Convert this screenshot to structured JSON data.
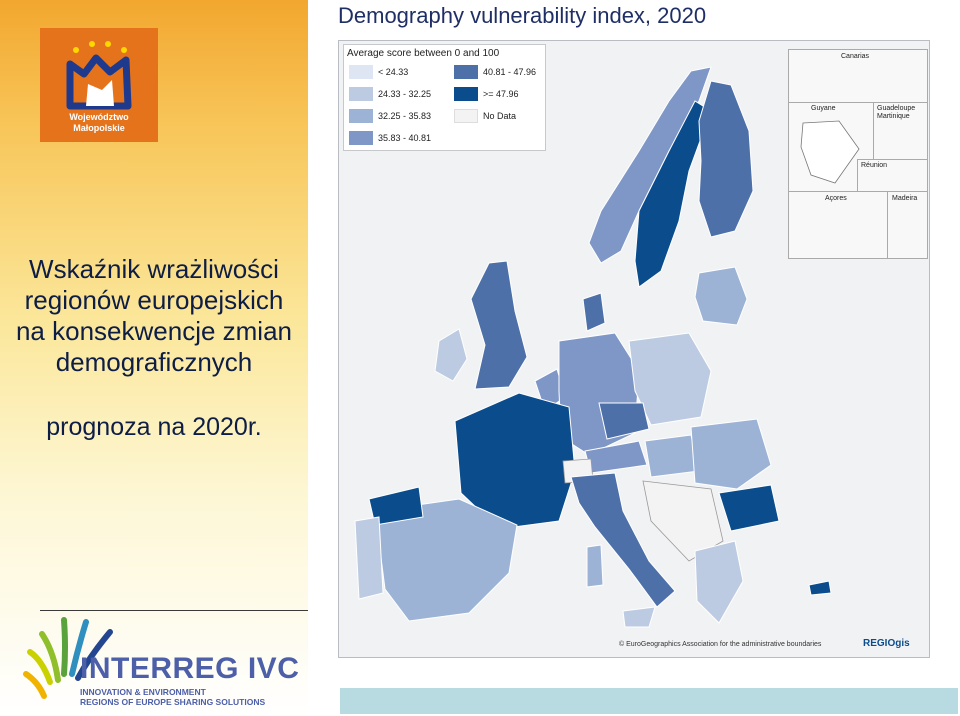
{
  "page": {
    "title": "Demography vulnerability index, 2020"
  },
  "left": {
    "logo_top": {
      "line1": "Województwo",
      "line2": "Małopolskie"
    },
    "heading_lines": [
      "Wskaźnik wrażliwości",
      "regionów europejskich",
      "na konsekwencje zmian",
      "demograficznych"
    ],
    "subheading": "prognoza na 2020r.",
    "interreg": {
      "name": "INTERREG IVC",
      "sub1": "INNOVATION & ENVIRONMENT",
      "sub2": "REGIONS OF EUROPE SHARING SOLUTIONS"
    }
  },
  "legend": {
    "title": "Average score between 0 and 100",
    "classes": [
      {
        "label": "< 24.33",
        "color": "#dde6f2"
      },
      {
        "label": "24.33 - 32.25",
        "color": "#bccbe2"
      },
      {
        "label": "32.25 - 35.83",
        "color": "#9db3d5"
      },
      {
        "label": "35.83 - 40.81",
        "color": "#7f97c7"
      },
      {
        "label": "40.81 - 47.96",
        "color": "#4d70a8"
      },
      {
        "label": ">= 47.96",
        "color": "#0b4c8c"
      },
      {
        "label": "No Data",
        "color": "#f3f3f3"
      }
    ]
  },
  "insets": {
    "canarias": "Canarias",
    "guyane": "Guyane",
    "guadeloupe": "Guadeloupe",
    "martinique": "Martinique",
    "reunion": "Réunion",
    "acores": "Açores",
    "madeira": "Madeira"
  },
  "map_footer": "© EuroGeographics Association for the administrative boundaries",
  "regiogis": "REGIOgis"
}
